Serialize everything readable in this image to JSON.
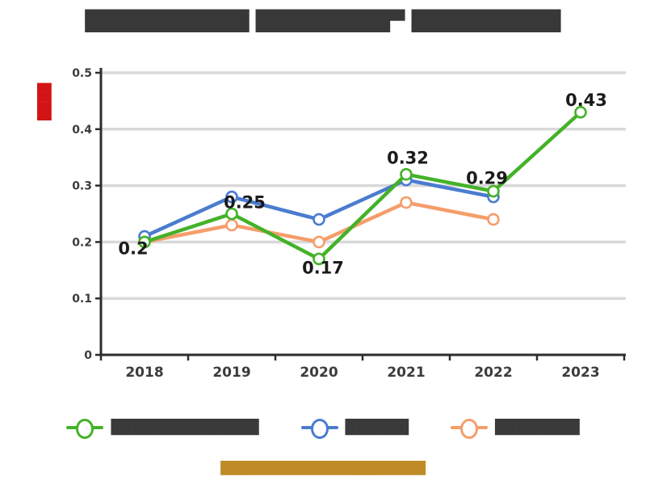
{
  "title": {
    "text": "███████████ █████████▀ ██████████"
  },
  "y_axis": {
    "label": "████",
    "label_color": "#d21414",
    "ticks": [
      "0.5",
      "0.4",
      "0.3",
      "0.2",
      "0.1",
      "0"
    ]
  },
  "x_axis": {
    "ticks": [
      "2018",
      "2019",
      "2020",
      "2021",
      "2022",
      "2023"
    ]
  },
  "legend": {
    "items": [
      {
        "label": "██████████████",
        "color": "#44b228"
      },
      {
        "label": "██████",
        "color": "#4a7cd0"
      },
      {
        "label": "████████",
        "color": "#f59d6b"
      }
    ]
  },
  "caption": {
    "text": "██████████████████████",
    "color": "#bf8b26"
  },
  "chart_data": {
    "type": "line",
    "categories": [
      "2018",
      "2019",
      "2020",
      "2021",
      "2022",
      "2023"
    ],
    "series": [
      {
        "name": "██████████████ (green)",
        "color": "#44b228",
        "values": [
          0.2,
          0.25,
          0.17,
          0.32,
          0.29,
          0.43
        ],
        "labels": [
          "0.2",
          "0.25",
          "0.17",
          "0.32",
          "0.29",
          "0.43"
        ],
        "label_offsets": [
          [
            -14,
            15
          ],
          [
            16,
            -7
          ],
          [
            5,
            18
          ],
          [
            2,
            -13
          ],
          [
            -8,
            -9
          ],
          [
            7,
            -8
          ]
        ]
      },
      {
        "name": "██████ (blue)",
        "color": "#4a7cd0",
        "values": [
          0.21,
          0.28,
          0.24,
          0.31,
          0.28
        ]
      },
      {
        "name": "████████ (orange)",
        "color": "#f59d6b",
        "values": [
          0.2,
          0.23,
          0.2,
          0.27,
          0.24
        ]
      }
    ],
    "ylim": [
      0,
      0.5
    ],
    "yticks": [
      0,
      0.1,
      0.2,
      0.3,
      0.4,
      0.5
    ],
    "grid": true,
    "grid_color": "#d9d9d9",
    "axis_color": "#2d2d2d",
    "tick_label_color": "#3c3c3c",
    "data_label_color": "#1b1b1b",
    "legend_position": "bottom",
    "marker": "circle-white-fill"
  }
}
